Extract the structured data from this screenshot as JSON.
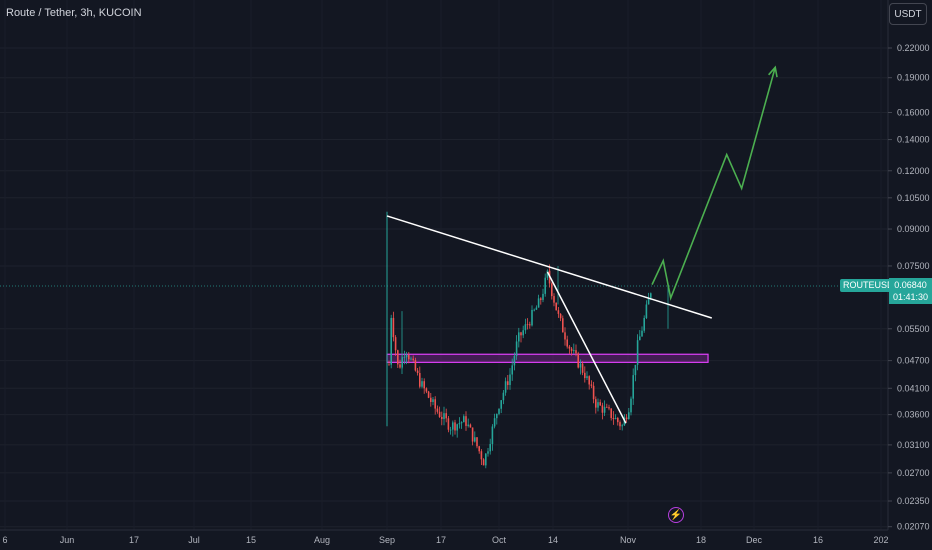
{
  "header": {
    "symbol_title": "Route / Tether, 3h, KUCOIN",
    "currency": "USDT"
  },
  "price_label": {
    "symbol": "ROUTEUSDT",
    "price": "0.06840",
    "countdown": "01:41:30"
  },
  "colors": {
    "background": "#131722",
    "up": "#26a69a",
    "down": "#ef5350",
    "zone": "#9c27b0",
    "trendline": "#ffffff",
    "projection": "#4caf50",
    "axis_text": "#b2b5be"
  },
  "icons": {
    "lightning": "lightning-icon"
  },
  "chart_data": {
    "type": "candlestick",
    "title": "Route / Tether, 3h, KUCOIN",
    "y_scale": "log",
    "ylim": [
      0.0207,
      0.245
    ],
    "y_ticks": [
      "0.22000",
      "0.19000",
      "0.16000",
      "0.14000",
      "0.12000",
      "0.10500",
      "0.09000",
      "0.07500",
      "0.05500",
      "0.04700",
      "0.04100",
      "0.03600",
      "0.03100",
      "0.02700",
      "0.02350",
      "0.02070"
    ],
    "x_ticks": [
      "6",
      "Jun",
      "17",
      "Jul",
      "15",
      "Aug",
      "Sep",
      "17",
      "Oct",
      "14",
      "Nov",
      "18",
      "Dec",
      "16",
      "202"
    ],
    "current_price": 0.0684,
    "grid": true,
    "price_path": [
      [
        "Sep 1",
        0.098
      ],
      [
        "Sep 1",
        0.034
      ],
      [
        "Sep 2",
        0.06
      ],
      [
        "Sep 4",
        0.045
      ],
      [
        "Sep 6",
        0.05
      ],
      [
        "Sep 10",
        0.042
      ],
      [
        "Sep 14",
        0.037
      ],
      [
        "Sep 18",
        0.034
      ],
      [
        "Sep 22",
        0.035
      ],
      [
        "Sep 27",
        0.0285
      ],
      [
        "Oct 1",
        0.038
      ],
      [
        "Oct 4",
        0.044
      ],
      [
        "Oct 6",
        0.052
      ],
      [
        "Oct 9",
        0.057
      ],
      [
        "Oct 12",
        0.063
      ],
      [
        "Oct 14",
        0.072
      ],
      [
        "Oct 17",
        0.058
      ],
      [
        "Oct 20",
        0.05
      ],
      [
        "Oct 24",
        0.044
      ],
      [
        "Oct 27",
        0.038
      ],
      [
        "Oct 31",
        0.036
      ],
      [
        "Nov 3",
        0.034
      ],
      [
        "Nov 5",
        0.038
      ],
      [
        "Nov 7",
        0.05
      ],
      [
        "Nov 9",
        0.058
      ],
      [
        "Nov 11",
        0.0684
      ]
    ],
    "annotations": {
      "descending_resistance": [
        [
          "Sep 1",
          0.096
        ],
        [
          "Nov 27",
          0.058
        ]
      ],
      "drop_line": [
        [
          "Oct 14",
          0.0728
        ],
        [
          "Nov 4",
          0.0345
        ]
      ],
      "support_zone": {
        "from": "Sep 1",
        "to": "Nov 26",
        "low": 0.0466,
        "high": 0.0485
      },
      "projection": [
        [
          "Nov 11",
          0.0684
        ],
        [
          "Nov 14",
          0.077
        ],
        [
          "Nov 16",
          0.064
        ],
        [
          "Dec 1",
          0.13
        ],
        [
          "Dec 5",
          0.11
        ],
        [
          "Dec 14",
          0.2
        ]
      ]
    }
  }
}
